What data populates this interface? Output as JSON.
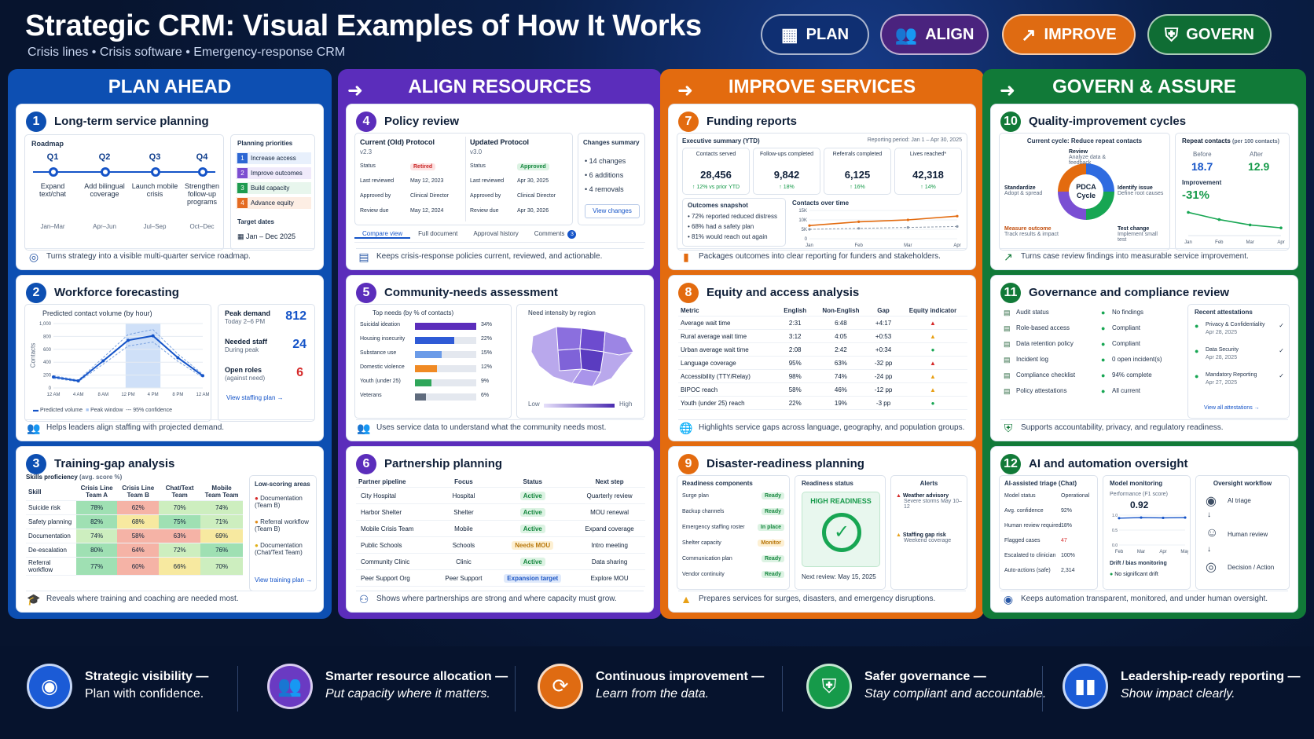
{
  "header": {
    "title": "Strategic CRM: Visual Examples of How It Works",
    "subtitle": "Crisis lines • Crisis software • Emergency-response CRM",
    "pills": [
      {
        "label": "PLAN",
        "icon": "calendar-icon",
        "color": "#0f2f72"
      },
      {
        "label": "ALIGN",
        "icon": "users-icon",
        "color": "#4a237e"
      },
      {
        "label": "IMPROVE",
        "icon": "trend-icon",
        "color": "#df6b12"
      },
      {
        "label": "GOVERN",
        "icon": "shield-icon",
        "color": "#0f6d34"
      }
    ]
  },
  "columns": [
    {
      "title": "PLAN AHEAD",
      "color": "#0d4fb2"
    },
    {
      "title": "ALIGN RESOURCES",
      "color": "#5b2dbb"
    },
    {
      "title": "IMPROVE SERVICES",
      "color": "#e36b0f"
    },
    {
      "title": "GOVERN & ASSURE",
      "color": "#117a38"
    }
  ],
  "cards": {
    "c1": {
      "num": "1",
      "title": "Long-term service planning",
      "roadmap": "Roadmap",
      "quarters": [
        "Q1",
        "Q2",
        "Q3",
        "Q4"
      ],
      "items": [
        "Expand text/chat",
        "Add bilingual coverage",
        "Launch mobile crisis",
        "Strengthen follow-up programs"
      ],
      "months": [
        "Jan–Mar",
        "Apr–Jun",
        "Jul–Sep",
        "Oct–Dec"
      ],
      "priority_title": "Planning priorities",
      "priorities": [
        "Increase access",
        "Improve outcomes",
        "Build capacity",
        "Advance equity"
      ],
      "target_label": "Target dates",
      "target": "Jan – Dec 2025",
      "foot": "Turns strategy into a visible multi-quarter service roadmap."
    },
    "c2": {
      "num": "2",
      "title": "Workforce forecasting",
      "chart_title": "Predicted contact volume (by hour)",
      "ylabel": "Contacts",
      "peak_label": "Peak demand",
      "peak_time": "Today 2–6 PM",
      "peak_value": "812",
      "staff_label": "Needed staff",
      "staff_sub": "During peak",
      "staff_value": "24",
      "roles_label": "Open roles",
      "roles_sub": "(against need)",
      "roles_value": "6",
      "legend": [
        "Predicted volume",
        "Peak window",
        "95% confidence"
      ],
      "link": "View staffing plan →",
      "foot": "Helps leaders align staffing with projected demand."
    },
    "c3": {
      "num": "3",
      "title": "Training-gap analysis",
      "chart_title": "Skills proficiency",
      "chart_sub": "(avg. score %)",
      "headers": [
        "Skill",
        "Crisis Line Team A",
        "Crisis Line Team B",
        "Chat/Text Team",
        "Mobile Team Team"
      ],
      "rows": [
        [
          "Suicide risk",
          "78%",
          "62%",
          "70%",
          "74%"
        ],
        [
          "Safety planning",
          "82%",
          "68%",
          "75%",
          "71%"
        ],
        [
          "Documentation",
          "74%",
          "58%",
          "63%",
          "69%"
        ],
        [
          "De-escalation",
          "80%",
          "64%",
          "72%",
          "76%"
        ],
        [
          "Referral workflow",
          "77%",
          "60%",
          "66%",
          "70%"
        ]
      ],
      "low_title": "Low-scoring areas",
      "low": [
        "Documentation (Team B)",
        "Referral workflow (Team B)",
        "Documentation (Chat/Text Team)"
      ],
      "link": "View training plan →",
      "foot": "Reveals where training and coaching are needed most."
    },
    "c4": {
      "num": "4",
      "title": "Policy review",
      "old_title": "Current (Old) Protocol",
      "old_ver": "v2.3",
      "new_title": "Updated Protocol",
      "new_ver": "v3.0",
      "fields": [
        "Status",
        "Last reviewed",
        "Approved by",
        "Review due"
      ],
      "old_vals": [
        "Retired",
        "May 12, 2023",
        "Clinical Director",
        "May 12, 2024"
      ],
      "new_vals": [
        "Approved",
        "Apr 30, 2025",
        "Clinical Director",
        "Apr 30, 2026"
      ],
      "summary_title": "Changes summary",
      "summary": [
        "14 changes",
        "6 additions",
        "4 removals"
      ],
      "summary_btn": "View changes",
      "tabs": [
        "Compare view",
        "Full document",
        "Approval history",
        "Comments"
      ],
      "comments": "3",
      "foot": "Keeps crisis-response policies current, reviewed, and actionable."
    },
    "c5": {
      "num": "5",
      "title": "Community-needs assessment",
      "needs_title": "Top needs (by % of contacts)",
      "needs": [
        {
          "label": "Suicidal ideation",
          "value": 34,
          "text": "34%"
        },
        {
          "label": "Housing insecurity",
          "value": 22,
          "text": "22%"
        },
        {
          "label": "Substance use",
          "value": 15,
          "text": "15%"
        },
        {
          "label": "Domestic violence",
          "value": 12,
          "text": "12%"
        },
        {
          "label": "Youth (under 25)",
          "value": 9,
          "text": "9%"
        },
        {
          "label": "Veterans",
          "value": 6,
          "text": "6%"
        }
      ],
      "map_title": "Need intensity by region",
      "low": "Low",
      "high": "High",
      "foot": "Uses service data to understand what the community needs most."
    },
    "c6": {
      "num": "6",
      "title": "Partnership planning",
      "headers": [
        "Partner pipeline",
        "Focus",
        "Status",
        "Next step"
      ],
      "rows": [
        [
          "City Hospital",
          "Hospital",
          "Active",
          "Quarterly review"
        ],
        [
          "Harbor Shelter",
          "Shelter",
          "Active",
          "MOU renewal"
        ],
        [
          "Mobile Crisis Team",
          "Mobile",
          "Active",
          "Expand coverage"
        ],
        [
          "Public Schools",
          "Schools",
          "Needs MOU",
          "Intro meeting"
        ],
        [
          "Community Clinic",
          "Clinic",
          "Active",
          "Data sharing"
        ],
        [
          "Peer Support Org",
          "Peer Support",
          "Expansion target",
          "Explore MOU"
        ]
      ],
      "foot": "Shows where partnerships are strong and where capacity must grow."
    },
    "c7": {
      "num": "7",
      "title": "Funding reports",
      "exec": "Executive summary (YTD)",
      "period": "Reporting period: Jan 1 – Apr 30, 2025",
      "kpis": [
        {
          "label": "Contacts served",
          "value": "28,456",
          "delta": "↑ 12% vs prior YTD"
        },
        {
          "label": "Follow-ups completed",
          "value": "9,842",
          "delta": "↑ 18%"
        },
        {
          "label": "Referrals completed",
          "value": "6,125",
          "delta": "↑ 16%"
        },
        {
          "label": "Lives reached*",
          "value": "42,318",
          "delta": "↑ 14%"
        }
      ],
      "snapshot_title": "Outcomes snapshot",
      "snapshot": [
        "72% reported reduced distress",
        "68% had a safety plan",
        "81% would reach out again"
      ],
      "chart_title": "Contacts over time",
      "chart_months": [
        "Jan",
        "Feb",
        "Mar",
        "Apr"
      ],
      "chart_yticks": [
        "15K",
        "10K",
        "5K",
        "0"
      ],
      "foot": "Packages outcomes into clear reporting for funders and stakeholders."
    },
    "c8": {
      "num": "8",
      "title": "Equity and access analysis",
      "headers": [
        "Metric",
        "English",
        "Non-English",
        "Gap",
        "Equity indicator"
      ],
      "rows": [
        [
          "Average wait time",
          "2:31",
          "6:48",
          "+4:17",
          "warn-red"
        ],
        [
          "Rural average wait time",
          "3:12",
          "4:05",
          "+0:53",
          "warn-orange"
        ],
        [
          "Urban average wait time",
          "2:08",
          "2:42",
          "+0:34",
          "ok"
        ],
        [
          "Language coverage",
          "95%",
          "63%",
          "-32 pp",
          "warn-red"
        ],
        [
          "Accessibility (TTY/Relay)",
          "98%",
          "74%",
          "-24 pp",
          "warn-orange"
        ],
        [
          "BIPOC reach",
          "58%",
          "46%",
          "-12 pp",
          "warn-orange"
        ],
        [
          "Youth (under 25) reach",
          "22%",
          "19%",
          "-3 pp",
          "ok"
        ]
      ],
      "foot": "Highlights service gaps across language, geography, and population groups."
    },
    "c9": {
      "num": "9",
      "title": "Disaster-readiness planning",
      "comp_title": "Readiness components",
      "components": [
        [
          "Surge plan",
          "Ready"
        ],
        [
          "Backup channels",
          "Ready"
        ],
        [
          "Emergency staffing roster",
          "In place"
        ],
        [
          "Shelter capacity",
          "Monitor"
        ],
        [
          "Communication plan",
          "Ready"
        ],
        [
          "Vendor continuity",
          "Ready"
        ]
      ],
      "status_title": "Readiness status",
      "status": "HIGH READINESS",
      "next_review": "Next review: May 15, 2025",
      "alerts_title": "Alerts",
      "alerts": [
        {
          "title": "Weather advisory",
          "sub": "Severe storms May 10–12"
        },
        {
          "title": "Staffing gap risk",
          "sub": "Weekend coverage"
        }
      ],
      "foot": "Prepares services for surges, disasters, and emergency disruptions."
    },
    "c10": {
      "num": "10",
      "title": "Quality-improvement cycles",
      "cycle_title": "Current cycle: Reduce repeat contacts",
      "cycle_center": "PDCA Cycle",
      "steps": [
        {
          "title": "Review",
          "sub": "Analyze data & feedback"
        },
        {
          "title": "Identify issue",
          "sub": "Define root causes"
        },
        {
          "title": "Test change",
          "sub": "Implement small test"
        },
        {
          "title": "Measure outcome",
          "sub": "Track results & impact"
        },
        {
          "title": "Standardize",
          "sub": "Adopt & spread"
        }
      ],
      "repeat_title": "Repeat contacts",
      "repeat_sub": "(per 100 contacts)",
      "before_label": "Before",
      "before": "18.7",
      "after_label": "After",
      "after": "12.9",
      "improve_label": "Improvement",
      "improve": "-31%",
      "months": [
        "Jan",
        "Feb",
        "Mar",
        "Apr"
      ],
      "foot": "Turns case review findings into measurable service improvement."
    },
    "c11": {
      "num": "11",
      "title": "Governance and compliance review",
      "items": [
        [
          "Audit status",
          "No findings"
        ],
        [
          "Role-based access",
          "Compliant"
        ],
        [
          "Data retention policy",
          "Compliant"
        ],
        [
          "Incident log",
          "0 open incident(s)"
        ],
        [
          "Compliance checklist",
          "94% complete"
        ],
        [
          "Policy attestations",
          "All current"
        ]
      ],
      "att_title": "Recent attestations",
      "attestations": [
        [
          "Privacy & Confidentiality",
          "Apr 28, 2025"
        ],
        [
          "Data Security",
          "Apr 28, 2025"
        ],
        [
          "Mandatory Reporting",
          "Apr 27, 2025"
        ]
      ],
      "link": "View all attestations →",
      "foot": "Supports accountability, privacy, and regulatory readiness."
    },
    "c12": {
      "num": "12",
      "title": "AI and automation oversight",
      "triage_title": "AI-assisted triage (Chat)",
      "triage": [
        [
          "Model status",
          "Operational"
        ],
        [
          "Avg. confidence",
          "92%"
        ],
        [
          "Human review required",
          "18%"
        ],
        [
          "Flagged cases",
          "47"
        ],
        [
          "Escalated to clinician",
          "100%"
        ],
        [
          "Auto-actions (safe)",
          "2,314"
        ]
      ],
      "monitor_title": "Model monitoring",
      "perf_label": "Performance (F1 score)",
      "perf": "0.92",
      "perf_ticks": [
        "1.0",
        "0.5",
        "0.0"
      ],
      "months": [
        "Feb",
        "Mar",
        "Apr",
        "May"
      ],
      "drift_label": "Drift / bias monitoring",
      "drift": "No significant drift",
      "workflow_title": "Oversight workflow",
      "workflow": [
        "AI triage",
        "Human review",
        "Decision / Action"
      ],
      "foot": "Keeps automation transparent, monitored, and under human oversight."
    }
  },
  "chart_data": [
    {
      "type": "line",
      "title": "Predicted contact volume (by hour)",
      "ylabel": "Contacts",
      "x": [
        "12 AM",
        "4 AM",
        "8 AM",
        "12 PM",
        "4 PM",
        "8 PM",
        "12 AM"
      ],
      "yticks": [
        "1,000",
        "800",
        "600",
        "400",
        "200",
        "0"
      ],
      "series": [
        {
          "name": "Predicted volume",
          "values": [
            170,
            110,
            420,
            740,
            810,
            470,
            190
          ]
        }
      ]
    },
    {
      "type": "bar",
      "title": "Top needs (by % of contacts)",
      "categories": [
        "Suicidal ideation",
        "Housing insecurity",
        "Substance use",
        "Domestic violence",
        "Youth (under 25)",
        "Veterans"
      ],
      "values": [
        34,
        22,
        15,
        12,
        9,
        6
      ]
    },
    {
      "type": "line",
      "title": "Contacts over time",
      "x": [
        "Jan",
        "Feb",
        "Mar",
        "Apr"
      ],
      "yticks": [
        "15K",
        "10K",
        "5K",
        "0"
      ],
      "series": [
        {
          "values": [
            7,
            9,
            10,
            12
          ]
        },
        {
          "values": [
            5,
            5.5,
            6,
            6.5
          ]
        }
      ]
    },
    {
      "type": "line",
      "title": "Repeat contacts (per 100 contacts)",
      "x": [
        "Jan",
        "Feb",
        "Mar",
        "Apr"
      ],
      "series": [
        {
          "values": [
            18.7,
            16,
            14,
            12.9
          ]
        }
      ]
    },
    {
      "type": "line",
      "title": "Performance (F1 score)",
      "x": [
        "Feb",
        "Mar",
        "Apr",
        "May"
      ],
      "yticks": [
        "1.0",
        "0.5",
        "0.0"
      ],
      "series": [
        {
          "values": [
            0.9,
            0.92,
            0.91,
            0.92
          ]
        }
      ]
    }
  ],
  "bottom": [
    {
      "title": "Strategic visibility —",
      "sub": "Plan with confidence.",
      "icon": "eye-icon",
      "color": "#1b5bd6"
    },
    {
      "title": "Smarter resource allocation —",
      "sub": "Put capacity where it matters.",
      "icon": "team-icon",
      "color": "#6a3ac2"
    },
    {
      "title": "Continuous improvement —",
      "sub": "Learn from the data.",
      "icon": "cycle-icon",
      "color": "#df6b12"
    },
    {
      "title": "Safer governance —",
      "sub": "Stay compliant and accountable.",
      "icon": "shield-icon",
      "color": "#169a4a"
    },
    {
      "title": "Leadership-ready reporting —",
      "sub": "Show impact clearly.",
      "icon": "bar-chart-icon",
      "color": "#1b5bd6"
    }
  ]
}
